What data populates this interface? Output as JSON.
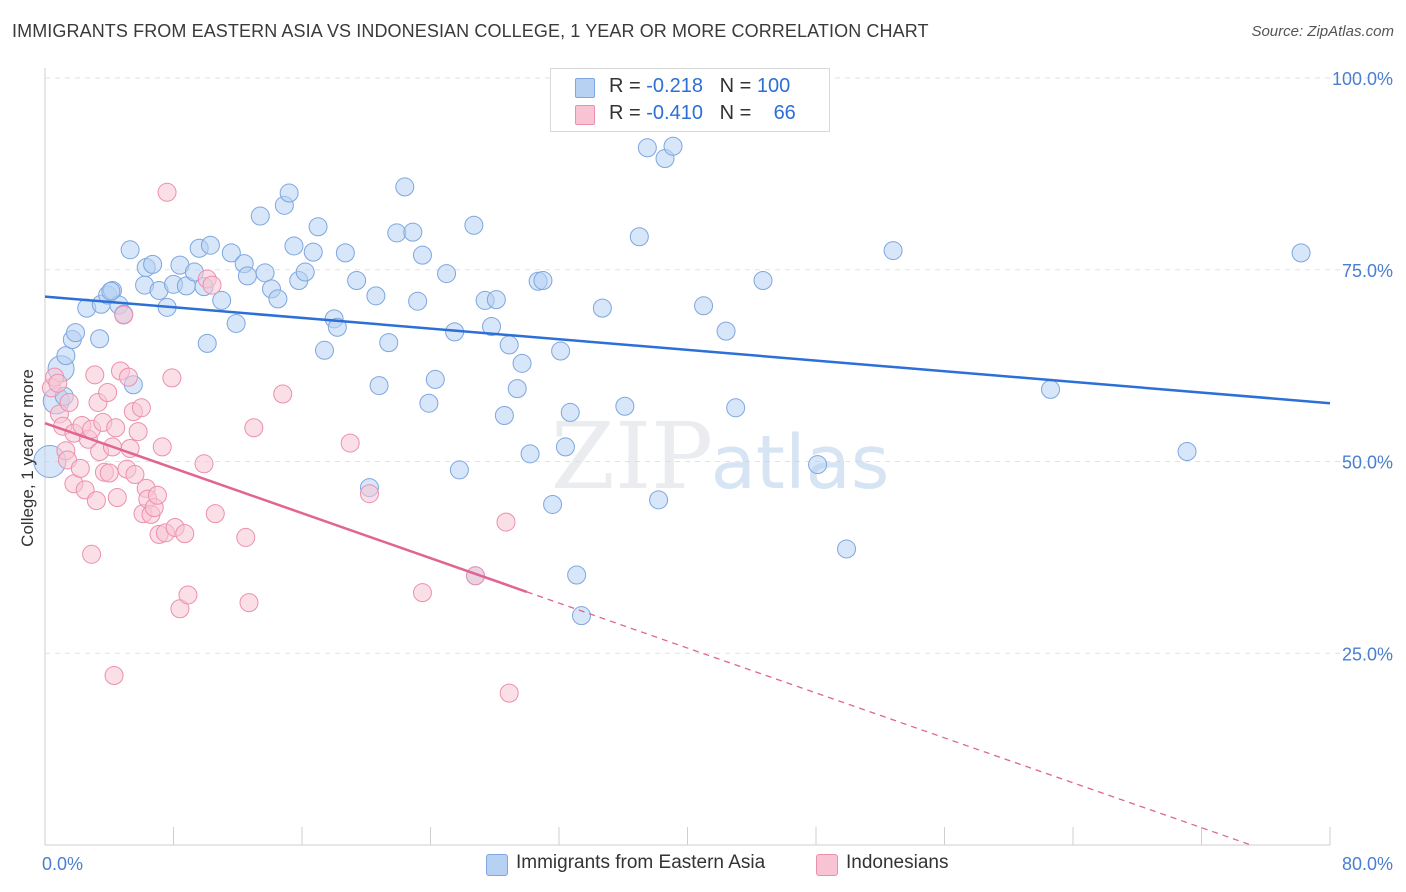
{
  "title": "IMMIGRANTS FROM EASTERN ASIA VS INDONESIAN COLLEGE, 1 YEAR OR MORE CORRELATION CHART",
  "source": "Source: ZipAtlas.com",
  "watermark": {
    "zip": "ZIP",
    "atlas": "atlas"
  },
  "legend_top": [
    {
      "r_label": "R =",
      "r_value": "-0.218",
      "n_label": "N =",
      "n_value": "100",
      "color": "#a9c7f0"
    },
    {
      "r_label": "R =",
      "r_value": "-0.410",
      "n_label": "N =",
      "n_value": "66",
      "color": "#f6b6ca"
    }
  ],
  "legend_bottom": [
    {
      "label": "Immigrants from Eastern Asia",
      "color": "#b7d1f3"
    },
    {
      "label": "Indonesians",
      "color": "#f8c4d4"
    }
  ],
  "chart_data": {
    "type": "scatter",
    "ylabel": "College, 1 year or more",
    "xlim": [
      0,
      80
    ],
    "ylim": [
      0,
      100
    ],
    "x_tick_labels": [
      {
        "value": 0,
        "label": "0.0%"
      },
      {
        "value": 80,
        "label": "80.0%"
      }
    ],
    "y_tick_labels": [
      {
        "value": 100,
        "label": "100.0%"
      },
      {
        "value": 75,
        "label": "75.0%"
      },
      {
        "value": 50,
        "label": "50.0%"
      },
      {
        "value": 25,
        "label": "25.0%"
      }
    ],
    "grid": true,
    "colors": {
      "blue_fill": "#b7d1f3",
      "blue_stroke": "#7ea6e0",
      "blue_line": "#2c6fd6",
      "pink_fill": "#f8c4d4",
      "pink_stroke": "#ec8fae",
      "pink_line": "#e06592"
    },
    "series": [
      {
        "name": "Immigrants from Eastern Asia",
        "trend": {
          "x0": 0,
          "y0": 71.5,
          "x1": 80,
          "y1": 57.6
        },
        "points": [
          [
            0.3,
            50
          ],
          [
            0.7,
            57.9
          ],
          [
            1.0,
            62.1
          ],
          [
            1.3,
            63.8
          ],
          [
            1.7,
            65.9
          ],
          [
            1.9,
            66.8
          ],
          [
            2.6,
            70
          ],
          [
            3.4,
            66
          ],
          [
            3.5,
            70.5
          ],
          [
            3.9,
            71.7
          ],
          [
            4.2,
            72.3
          ],
          [
            4.6,
            70.4
          ],
          [
            4.9,
            69.2
          ],
          [
            5.3,
            77.6
          ],
          [
            5.5,
            60
          ],
          [
            6.2,
            73
          ],
          [
            6.3,
            75.3
          ],
          [
            6.7,
            75.7
          ],
          [
            7.1,
            72.3
          ],
          [
            7.6,
            70.1
          ],
          [
            8.0,
            73.1
          ],
          [
            8.4,
            75.6
          ],
          [
            8.8,
            72.9
          ],
          [
            9.3,
            74.7
          ],
          [
            9.6,
            77.8
          ],
          [
            10.1,
            65.4
          ],
          [
            10.3,
            78.2
          ],
          [
            11.0,
            71
          ],
          [
            11.6,
            77.2
          ],
          [
            11.9,
            68
          ],
          [
            12.4,
            75.8
          ],
          [
            12.6,
            74.2
          ],
          [
            13.4,
            82
          ],
          [
            13.7,
            74.6
          ],
          [
            14.1,
            72.5
          ],
          [
            14.5,
            71.2
          ],
          [
            14.9,
            83.4
          ],
          [
            15.2,
            85
          ],
          [
            15.5,
            78.1
          ],
          [
            15.8,
            73.6
          ],
          [
            16.2,
            74.7
          ],
          [
            16.7,
            77.3
          ],
          [
            17.0,
            80.6
          ],
          [
            17.4,
            64.5
          ],
          [
            18.0,
            68.6
          ],
          [
            18.2,
            67.5
          ],
          [
            18.7,
            77.2
          ],
          [
            19.4,
            73.6
          ],
          [
            20.2,
            46.6
          ],
          [
            20.6,
            71.6
          ],
          [
            20.8,
            59.9
          ],
          [
            21.4,
            65.5
          ],
          [
            21.9,
            79.8
          ],
          [
            22.4,
            85.8
          ],
          [
            22.9,
            79.9
          ],
          [
            23.2,
            70.9
          ],
          [
            23.5,
            76.9
          ],
          [
            23.9,
            57.6
          ],
          [
            24.3,
            60.7
          ],
          [
            25.0,
            74.5
          ],
          [
            25.5,
            66.9
          ],
          [
            25.8,
            48.9
          ],
          [
            26.7,
            80.8
          ],
          [
            26.8,
            35.1
          ],
          [
            27.4,
            71
          ],
          [
            27.8,
            67.6
          ],
          [
            28.1,
            71.1
          ],
          [
            28.6,
            56
          ],
          [
            28.9,
            65.2
          ],
          [
            29.4,
            59.5
          ],
          [
            29.7,
            62.8
          ],
          [
            30.2,
            51
          ],
          [
            30.7,
            73.5
          ],
          [
            31.0,
            73.6
          ],
          [
            31.6,
            44.4
          ],
          [
            32.1,
            64.4
          ],
          [
            32.4,
            51.9
          ],
          [
            32.7,
            56.4
          ],
          [
            33.1,
            35.2
          ],
          [
            33.4,
            29.9
          ],
          [
            34.7,
            70
          ],
          [
            36.1,
            57.2
          ],
          [
            37.0,
            79.3
          ],
          [
            37.5,
            90.9
          ],
          [
            38.2,
            45
          ],
          [
            38.6,
            89.5
          ],
          [
            39.1,
            91.1
          ],
          [
            41.0,
            70.3
          ],
          [
            42.4,
            67
          ],
          [
            43.0,
            57
          ],
          [
            44.7,
            73.6
          ],
          [
            48.1,
            49.6
          ],
          [
            49.9,
            38.6
          ],
          [
            52.8,
            77.5
          ],
          [
            62.6,
            59.4
          ],
          [
            71.1,
            51.3
          ],
          [
            78.2,
            77.2
          ],
          [
            1.2,
            58.5
          ],
          [
            4.1,
            72.2
          ],
          [
            9.9,
            72.8
          ]
        ]
      },
      {
        "name": "Indonesians",
        "trend": {
          "x0": 0,
          "y0": 55,
          "x1": 30,
          "y1": 33,
          "extend_x1": 80,
          "extend_y1": -3.6
        },
        "points": [
          [
            0.4,
            59.6
          ],
          [
            0.6,
            61
          ],
          [
            0.8,
            60.2
          ],
          [
            0.9,
            56.2
          ],
          [
            1.1,
            54.6
          ],
          [
            1.3,
            51.4
          ],
          [
            1.4,
            50.2
          ],
          [
            1.5,
            57.7
          ],
          [
            1.8,
            53.7
          ],
          [
            1.8,
            47.1
          ],
          [
            2.2,
            49.1
          ],
          [
            2.3,
            54.7
          ],
          [
            2.5,
            46.3
          ],
          [
            2.7,
            52.9
          ],
          [
            2.9,
            54.2
          ],
          [
            2.9,
            37.9
          ],
          [
            3.2,
            44.9
          ],
          [
            3.3,
            57.7
          ],
          [
            3.4,
            51.3
          ],
          [
            3.6,
            55.1
          ],
          [
            3.7,
            48.6
          ],
          [
            3.9,
            59
          ],
          [
            4.0,
            48.5
          ],
          [
            4.2,
            51.9
          ],
          [
            4.3,
            22.1
          ],
          [
            4.4,
            54.4
          ],
          [
            4.5,
            45.3
          ],
          [
            4.7,
            61.8
          ],
          [
            4.9,
            69.1
          ],
          [
            5.1,
            49
          ],
          [
            5.2,
            61
          ],
          [
            5.3,
            51.7
          ],
          [
            5.5,
            56.5
          ],
          [
            5.6,
            48.3
          ],
          [
            5.8,
            53.9
          ],
          [
            6.0,
            57
          ],
          [
            6.1,
            43.2
          ],
          [
            6.3,
            46.5
          ],
          [
            6.4,
            45.1
          ],
          [
            6.6,
            43.1
          ],
          [
            6.8,
            44
          ],
          [
            7.0,
            45.6
          ],
          [
            7.1,
            40.5
          ],
          [
            7.3,
            51.9
          ],
          [
            7.5,
            40.7
          ],
          [
            7.6,
            85.1
          ],
          [
            7.9,
            60.9
          ],
          [
            8.1,
            41.4
          ],
          [
            8.4,
            30.8
          ],
          [
            8.7,
            40.6
          ],
          [
            8.9,
            32.6
          ],
          [
            9.9,
            49.7
          ],
          [
            10.1,
            73.8
          ],
          [
            10.6,
            43.2
          ],
          [
            12.5,
            40.1
          ],
          [
            12.7,
            31.6
          ],
          [
            13.0,
            54.4
          ],
          [
            14.8,
            58.8
          ],
          [
            19.0,
            52.4
          ],
          [
            20.2,
            45.8
          ],
          [
            23.5,
            32.9
          ],
          [
            26.8,
            35.1
          ],
          [
            28.7,
            42.1
          ],
          [
            28.9,
            19.8
          ],
          [
            3.1,
            61.3
          ],
          [
            10.4,
            73
          ]
        ]
      }
    ]
  }
}
